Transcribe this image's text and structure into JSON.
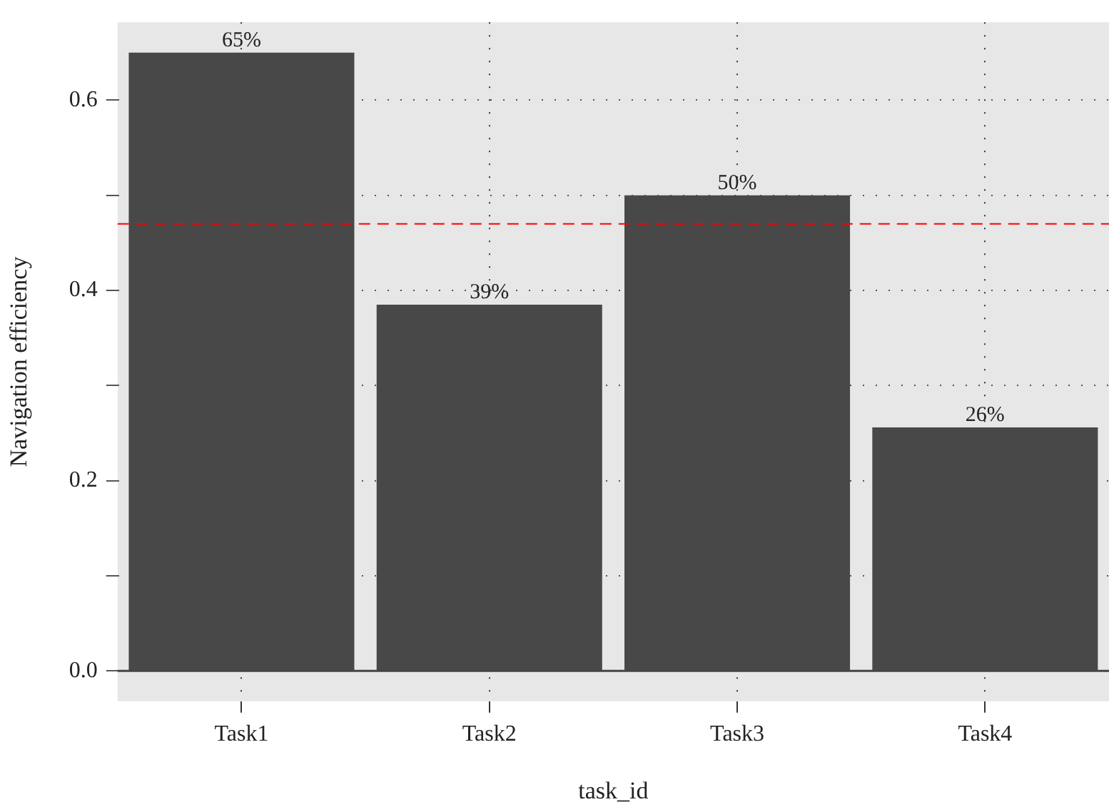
{
  "chart_data": {
    "type": "bar",
    "xlabel": "task_id",
    "ylabel": "Navigation efficiency",
    "categories": [
      "Task1",
      "Task2",
      "Task3",
      "Task4"
    ],
    "values": [
      0.65,
      0.385,
      0.5,
      0.256
    ],
    "color": "#474847",
    "value_labels": [
      "65%",
      "39%",
      "50%",
      "26%"
    ],
    "ylim": [
      -0.032,
      0.682
    ],
    "yticks": [
      {
        "value": 0,
        "label": "0.0"
      },
      {
        "value": 0.1,
        "label": null
      },
      {
        "value": 0.2,
        "label": "0.2"
      },
      {
        "value": 0.3,
        "label": null
      },
      {
        "value": 0.4,
        "label": "0.4"
      },
      {
        "value": 0.5,
        "label": null
      },
      {
        "value": 0.6,
        "label": "0.6"
      }
    ],
    "ref_lines": [
      {
        "axis": "y",
        "value": 0.47,
        "color": "#ff0000",
        "line_style": "dashed"
      }
    ],
    "grid": true,
    "legend": false
  }
}
